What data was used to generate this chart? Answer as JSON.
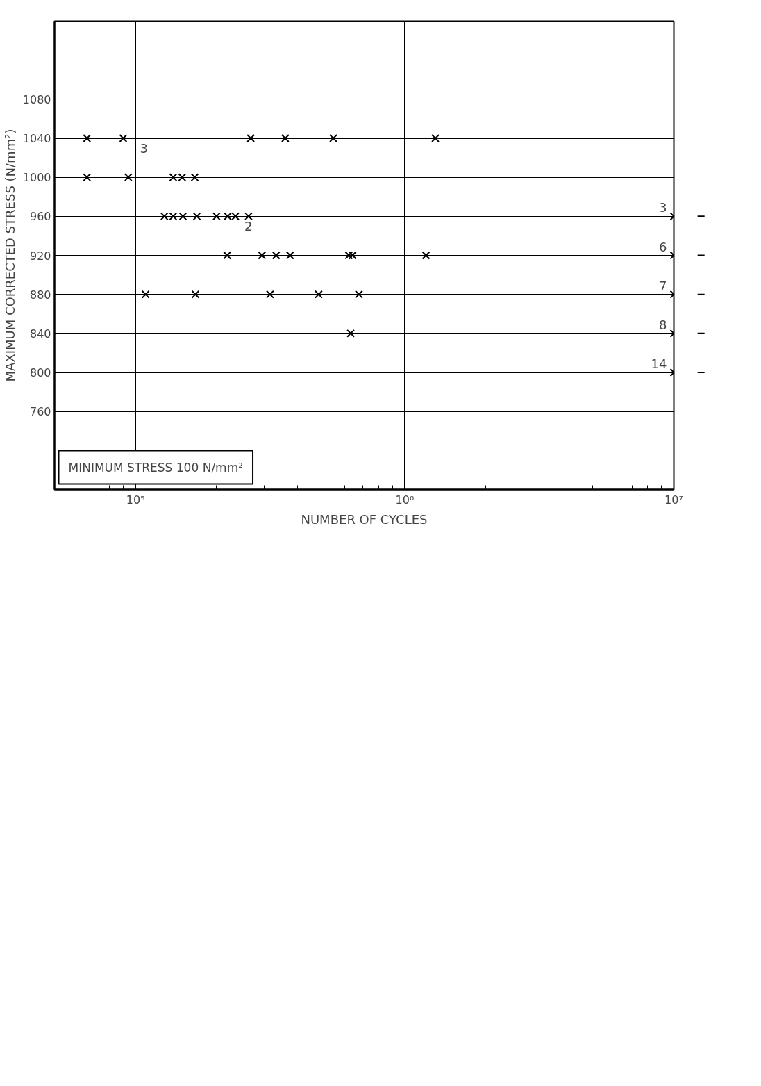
{
  "chart_data": {
    "type": "scatter",
    "xlabel": "NUMBER OF CYCLES",
    "ylabel": "MAXIMUM CORRECTED STRESS (N/mm²)",
    "log": "x",
    "marker": "cross",
    "grid": true,
    "xlim": [
      50000,
      10000000
    ],
    "ylim": [
      680,
      1160
    ],
    "xticks": [
      {
        "value": 60000,
        "label": null
      },
      {
        "value": 70000,
        "label": null
      },
      {
        "value": 80000,
        "label": null
      },
      {
        "value": 90000,
        "label": null
      },
      {
        "value": 100000,
        "label": "10⁵"
      },
      {
        "value": 200000,
        "label": null
      },
      {
        "value": 300000,
        "label": null
      },
      {
        "value": 400000,
        "label": null
      },
      {
        "value": 500000,
        "label": null
      },
      {
        "value": 600000,
        "label": null
      },
      {
        "value": 700000,
        "label": null
      },
      {
        "value": 800000,
        "label": null
      },
      {
        "value": 900000,
        "label": null
      },
      {
        "value": 1000000,
        "label": "10⁶"
      },
      {
        "value": 2000000,
        "label": null
      },
      {
        "value": 3000000,
        "label": null
      },
      {
        "value": 4000000,
        "label": null
      },
      {
        "value": 5000000,
        "label": null
      },
      {
        "value": 6000000,
        "label": null
      },
      {
        "value": 7000000,
        "label": null
      },
      {
        "value": 8000000,
        "label": null
      },
      {
        "value": 9000000,
        "label": null
      },
      {
        "value": 10000000,
        "label": "10⁷"
      }
    ],
    "yticks": [
      760,
      800,
      840,
      880,
      920,
      960,
      1000,
      1040,
      1080
    ],
    "series": [
      {
        "color": "#000000",
        "x": [
          66000,
          90000,
          268000,
          360000,
          543000,
          1300000,
          66000,
          94000,
          138000,
          149000,
          166000,
          128000,
          138000,
          150000,
          169000,
          200000,
          220000,
          235000,
          263000,
          10000000,
          219000,
          295000,
          333000,
          375000,
          620000,
          640000,
          1200000,
          10000000,
          109000,
          167000,
          316000,
          479000,
          676000,
          10000000,
          630000,
          10000000,
          10000000
        ],
        "values": [
          1040,
          1040,
          1040,
          1040,
          1040,
          1040,
          1000,
          1000,
          1000,
          1000,
          1000,
          960,
          960,
          960,
          960,
          960,
          960,
          960,
          960,
          960,
          920,
          920,
          920,
          920,
          920,
          920,
          920,
          920,
          880,
          880,
          880,
          880,
          880,
          880,
          840,
          840,
          800
        ]
      }
    ],
    "annotations": [
      {
        "text": "3",
        "x": 90000,
        "y": 1040
      },
      {
        "text": "2",
        "x": 220000,
        "y": 960
      },
      {
        "text": "3",
        "x": 10000000,
        "y": 960
      },
      {
        "text": "6",
        "x": 10000000,
        "y": 920
      },
      {
        "text": "7",
        "x": 10000000,
        "y": 880
      },
      {
        "text": "8",
        "x": 10000000,
        "y": 840
      },
      {
        "text": "14",
        "x": 10000000,
        "y": 800
      },
      "MINIMUM STRESS 100 N/mm²"
    ]
  }
}
